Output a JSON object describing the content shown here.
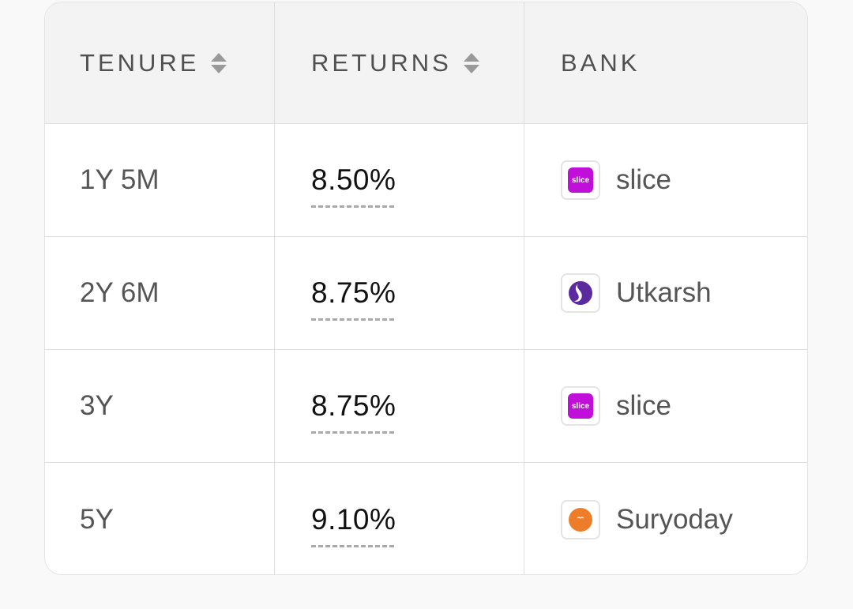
{
  "header": {
    "tenure": "TENURE",
    "returns": "RETURNS",
    "bank": "BANK",
    "sort_icon": "sort-up-down-icon"
  },
  "rows": [
    {
      "tenure": "1Y 5M",
      "returns": "8.50%",
      "bank": "slice",
      "logo": "slice-logo",
      "logo_text": "slice",
      "logo_color": "#c00fd8"
    },
    {
      "tenure": "2Y 6M",
      "returns": "8.75%",
      "bank": "Utkarsh",
      "logo": "utkarsh-logo",
      "logo_color": "#5b2a9e"
    },
    {
      "tenure": "3Y",
      "returns": "8.75%",
      "bank": "slice",
      "logo": "slice-logo",
      "logo_text": "slice",
      "logo_color": "#c00fd8"
    },
    {
      "tenure": "5Y",
      "returns": "9.10%",
      "bank": "Suryoday",
      "logo": "suryoday-logo",
      "logo_color": "#ee7d2a"
    }
  ],
  "colors": {
    "header_bg": "#f3f3f3",
    "border": "#dedede",
    "text_muted": "#555555",
    "text_strong": "#111111",
    "underline": "#a9a9a9"
  }
}
